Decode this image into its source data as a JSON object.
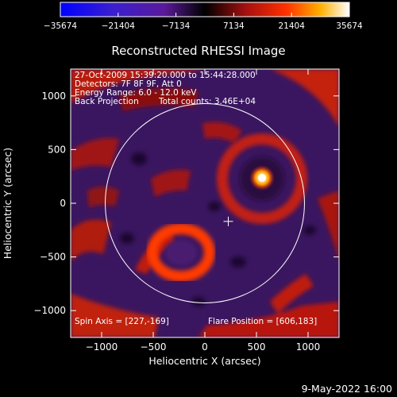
{
  "chart_data": {
    "type": "heatmap",
    "title": "Reconstructed RHESSI Image",
    "xlabel": "Heliocentric X (arcsec)",
    "ylabel": "Heliocentric Y (arcsec)",
    "xlim": [
      -1300,
      1300
    ],
    "ylim": [
      -1250,
      1250
    ],
    "x_ticks": [
      -1000,
      -500,
      0,
      500,
      1000
    ],
    "y_ticks": [
      -1000,
      -500,
      0,
      500,
      1000
    ],
    "colorbar": {
      "min": -35674,
      "max": 35674,
      "ticks": [
        -35674,
        -21404,
        -7134,
        7134,
        21404,
        35674
      ],
      "colormap": "blue-purple-black-red-yellow-white"
    },
    "annotations": {
      "time_range": "27-Oct-2009 15:39:20.000 to 15:44:28.000",
      "detectors": "Detectors: 7F 8F 9F, Att 0",
      "energy_range": "Energy Range: 6.0 - 12.0 keV",
      "method": "Back Projection",
      "total_counts": "Total counts: 3.46E+04",
      "spin_axis": "Spin Axis = [227,-169]",
      "flare_position": "Flare Position = [606,183]"
    },
    "solar_limb_radius_arcsec": 965,
    "spin_axis_xy": [
      227,
      -169
    ],
    "flare_position_xy": [
      606,
      183
    ],
    "grid": false
  },
  "footer": {
    "date": "9-May-2022 16:00"
  },
  "colors": {
    "background": "#000000",
    "limb": "#ffffff"
  }
}
